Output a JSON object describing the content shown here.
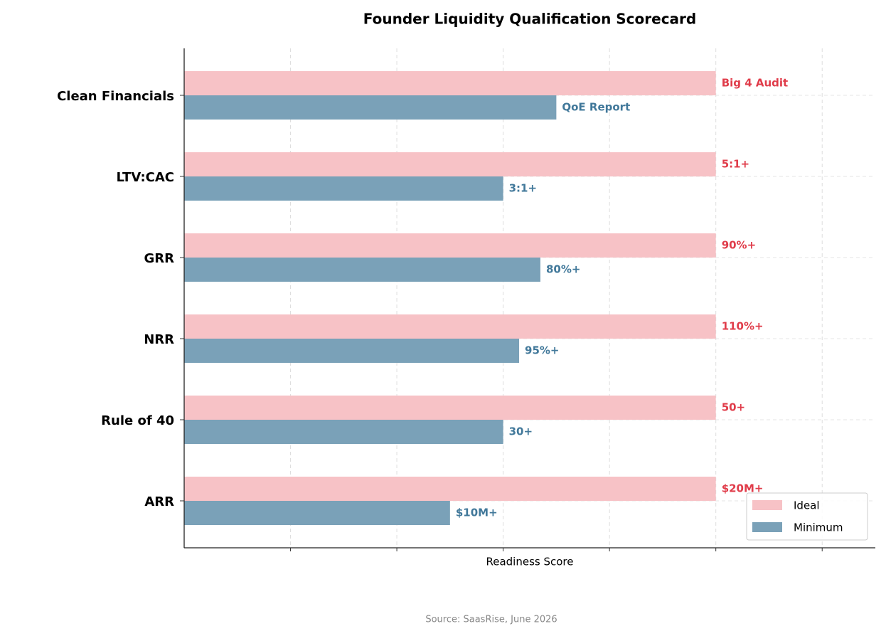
{
  "chart_data": {
    "type": "barh",
    "title": "Founder Liquidity Qualification Scorecard",
    "xlabel": "Readiness Score",
    "source": "Source: SaasRise, June 2026",
    "categories": [
      "Clean Financials",
      "LTV:CAC",
      "GRR",
      "NRR",
      "Rule of 40",
      "ARR"
    ],
    "series": [
      {
        "name": "Ideal",
        "color": "#f7c2c6",
        "label_color": "#e03c4a",
        "values": [
          100,
          100,
          100,
          100,
          100,
          100
        ],
        "value_labels": [
          "Big 4 Audit",
          "5:1+",
          "90%+",
          "110%+",
          "50+",
          "$20M+"
        ]
      },
      {
        "name": "Minimum",
        "color": "#7aa1b8",
        "label_color": "#41789a",
        "values": [
          70,
          60,
          67,
          63,
          60,
          50
        ],
        "value_labels": [
          "QoE Report",
          "3:1+",
          "80%+",
          "95%+",
          "30+",
          "$10M+"
        ]
      }
    ],
    "xlim": [
      0,
      130
    ],
    "xticks": [
      20,
      40,
      60,
      80,
      100,
      120
    ],
    "grid": true,
    "legend": "lower right"
  }
}
